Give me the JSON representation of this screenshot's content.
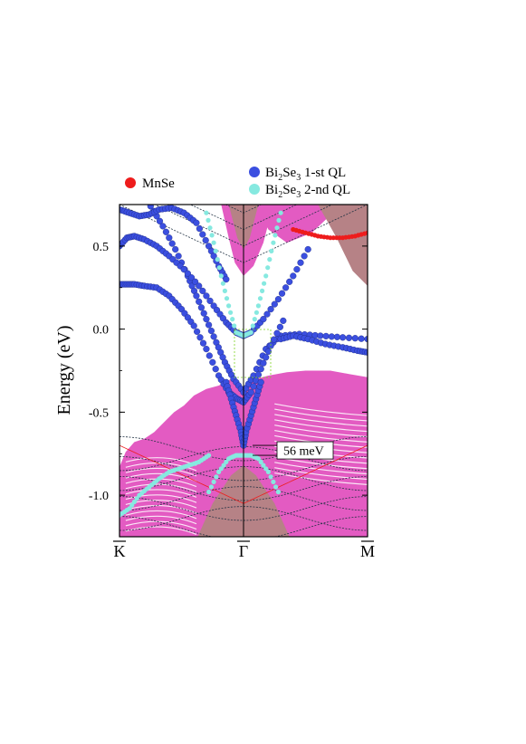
{
  "chart_data": {
    "type": "scatter",
    "title": "",
    "xlabel": "",
    "ylabel": "Energy (eV)",
    "ylim": [
      -1.25,
      0.75
    ],
    "xlim": [
      0,
      2
    ],
    "yticks": [
      {
        "value": 0.5,
        "label": "0.5"
      },
      {
        "value": 0.0,
        "label": "0.0"
      },
      {
        "value": -0.5,
        "label": "-0.5"
      },
      {
        "value": -1.0,
        "label": "-1.0"
      }
    ],
    "kpoints": [
      {
        "x": 0,
        "label": "K"
      },
      {
        "x": 1,
        "label": "Γ"
      },
      {
        "x": 2,
        "label": "M"
      }
    ],
    "legend": [
      {
        "name_main": "MnSe",
        "sub1": "",
        "mid": "",
        "sub2": "",
        "tail": "",
        "color": "#ee1c1c"
      },
      {
        "name_main": "Bi",
        "sub1": "2",
        "mid": "Se",
        "sub2": "3",
        "tail": " 1-st QL",
        "color": "#3b4fe0"
      },
      {
        "name_main": "Bi",
        "sub1": "2",
        "mid": "Se",
        "sub2": "3",
        "tail": " 2-nd QL",
        "color": "#86e9e0"
      }
    ],
    "gap_annotation": {
      "label": "56 meV",
      "top": -0.7,
      "bottom": -0.76
    },
    "colors": {
      "mnse": "#ee1c1c",
      "ql1": "#3b4fe0",
      "ql2": "#86e9e0",
      "bulk": "#e35bc2",
      "brown": "#b68286",
      "band_line": "#223344"
    },
    "series": [
      {
        "name": "Bi2Se3 1-st QL",
        "role": "dirac-lower-upper",
        "x": [
          0.25,
          0.35,
          0.45,
          0.55,
          0.62,
          0.7,
          0.78,
          0.85,
          0.92,
          1.0,
          1.08,
          1.18,
          1.3,
          1.45,
          1.62,
          1.8,
          2.0
        ],
        "y": [
          0.74,
          0.62,
          0.48,
          0.32,
          0.2,
          0.06,
          -0.08,
          -0.2,
          -0.3,
          -0.38,
          -0.28,
          -0.12,
          -0.04,
          -0.03,
          -0.04,
          -0.05,
          -0.06
        ]
      },
      {
        "name": "Bi2Se3 1-st QL",
        "role": "dirac-upper",
        "x": [
          0.0,
          0.06,
          0.12,
          0.2,
          0.3,
          0.4,
          0.5,
          0.6,
          0.7,
          0.8,
          0.88,
          0.95,
          1.0,
          1.06,
          1.14,
          1.22,
          1.32
        ],
        "y": [
          0.27,
          0.27,
          0.27,
          0.26,
          0.25,
          0.2,
          0.12,
          0.02,
          -0.12,
          -0.28,
          -0.38,
          -0.42,
          -0.44,
          -0.38,
          -0.24,
          -0.1,
          0.05
        ]
      },
      {
        "name": "Bi2Se3 1-st QL",
        "role": "upper-band",
        "x": [
          0.0,
          0.06,
          0.12,
          0.2,
          0.3,
          0.4,
          0.52,
          0.64,
          0.76,
          0.86,
          0.94,
          1.0,
          1.06,
          1.16,
          1.28,
          1.4,
          1.52
        ],
        "y": [
          0.5,
          0.55,
          0.56,
          0.54,
          0.5,
          0.44,
          0.36,
          0.26,
          0.14,
          0.04,
          -0.02,
          -0.04,
          -0.02,
          0.06,
          0.18,
          0.32,
          0.48
        ]
      },
      {
        "name": "Bi2Se3 1-st QL",
        "role": "top-band",
        "x": [
          0.0,
          0.08,
          0.16,
          0.24,
          0.32,
          0.42,
          0.52,
          0.62,
          0.72,
          0.8,
          0.86
        ],
        "y": [
          0.72,
          0.7,
          0.68,
          0.69,
          0.72,
          0.73,
          0.7,
          0.64,
          0.5,
          0.38,
          0.3
        ]
      },
      {
        "name": "Bi2Se3 1-st QL",
        "role": "right-band",
        "x": [
          1.3,
          1.4,
          1.52,
          1.66,
          1.8,
          1.92,
          2.0
        ],
        "y": [
          -0.06,
          -0.04,
          -0.06,
          -0.09,
          -0.11,
          -0.13,
          -0.14
        ]
      },
      {
        "name": "Bi2Se3 1-st QL",
        "role": "gamma-cone",
        "x": [
          0.86,
          0.9,
          0.94,
          0.98,
          1.0,
          1.02,
          1.06,
          1.1,
          1.14
        ],
        "y": [
          -0.32,
          -0.42,
          -0.52,
          -0.62,
          -0.7,
          -0.62,
          -0.52,
          -0.42,
          -0.32
        ]
      },
      {
        "name": "Bi2Se3 2-nd QL",
        "role": "cone",
        "x": [
          0.7,
          0.76,
          0.82,
          0.88,
          0.94,
          1.0,
          1.06,
          1.12,
          1.18,
          1.24,
          1.3
        ],
        "y": [
          0.7,
          0.52,
          0.32,
          0.14,
          -0.02,
          -0.04,
          -0.02,
          0.14,
          0.32,
          0.52,
          0.7
        ]
      },
      {
        "name": "Bi2Se3 2-nd QL",
        "role": "cone-lower",
        "x": [
          0.72,
          0.8,
          0.88,
          0.94,
          1.0,
          1.06,
          1.12,
          1.2,
          1.28
        ],
        "y": [
          -0.98,
          -0.86,
          -0.78,
          -0.76,
          -0.76,
          -0.76,
          -0.78,
          -0.86,
          -0.98
        ]
      },
      {
        "name": "Bi2Se3 2-nd QL",
        "role": "valence-left",
        "x": [
          0.0,
          0.08,
          0.16,
          0.24,
          0.32,
          0.4,
          0.48,
          0.56,
          0.64,
          0.72
        ],
        "y": [
          -1.12,
          -1.08,
          -1.0,
          -0.95,
          -0.9,
          -0.86,
          -0.84,
          -0.82,
          -0.8,
          -0.76
        ]
      },
      {
        "name": "MnSe",
        "role": "deep",
        "x": [
          1.4,
          1.5,
          1.6,
          1.7,
          1.8,
          1.9,
          2.0
        ],
        "y": [
          0.6,
          0.58,
          0.56,
          0.55,
          0.55,
          0.56,
          0.58
        ]
      }
    ]
  }
}
